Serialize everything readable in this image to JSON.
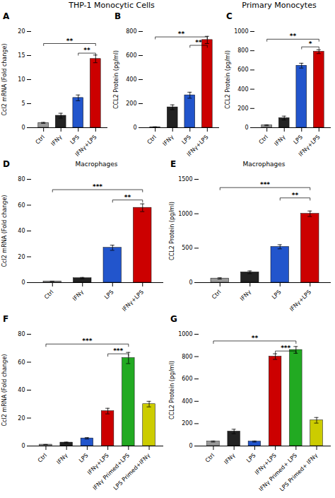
{
  "titles": [
    "THP-1 Monocytic Cells",
    "Primary Monocytes"
  ],
  "chart_data": [
    {
      "type": "bar",
      "panel_label": "A",
      "ylabel": "Ccl2 mRNA (Fold change)",
      "categories": [
        "Ctrl",
        "IFNγ",
        "LPS",
        "IFNγ+LPS"
      ],
      "values": [
        1.0,
        2.5,
        6.2,
        14.3
      ],
      "errors": [
        0.1,
        0.5,
        0.6,
        0.8
      ],
      "colors": [
        "#999999",
        "#222222",
        "#2255cc",
        "#cc0000"
      ],
      "ylim": [
        0,
        20
      ],
      "yticks": [
        0,
        5,
        10,
        15,
        20
      ],
      "annotations": [
        {
          "x1": "Ctrl",
          "x2": "IFNγ+LPS",
          "y": 17.5,
          "text": "**"
        },
        {
          "x1": "LPS",
          "x2": "IFNγ+LPS",
          "y": 15.5,
          "text": "**"
        }
      ]
    },
    {
      "type": "bar",
      "panel_label": "B",
      "ylabel": "CCL2 Protein (pg/ml)",
      "categories": [
        "Ctrl",
        "IFNγ",
        "LPS",
        "IFNγ+LPS"
      ],
      "values": [
        5.0,
        170.0,
        270.0,
        730.0
      ],
      "errors": [
        2.0,
        20.0,
        25.0,
        30.0
      ],
      "colors": [
        "#999999",
        "#222222",
        "#2255cc",
        "#cc0000"
      ],
      "ylim": [
        0,
        800
      ],
      "yticks": [
        0,
        200,
        400,
        600,
        800
      ],
      "annotations": [
        {
          "x1": "Ctrl",
          "x2": "IFNγ+LPS",
          "y": 755,
          "text": "**"
        },
        {
          "x1": "LPS",
          "x2": "IFNγ+LPS",
          "y": 685,
          "text": "**"
        }
      ]
    },
    {
      "type": "bar",
      "panel_label": "C",
      "ylabel": "CCL2 Protein (pg/ml)",
      "categories": [
        "Ctrl",
        "IFNγ",
        "LPS",
        "IFNγ+LPS"
      ],
      "values": [
        25.0,
        100.0,
        645.0,
        790.0
      ],
      "errors": [
        5.0,
        20.0,
        25.0,
        20.0
      ],
      "colors": [
        "#999999",
        "#222222",
        "#2255cc",
        "#cc0000"
      ],
      "ylim": [
        0,
        1000
      ],
      "yticks": [
        0,
        200,
        400,
        600,
        800,
        1000
      ],
      "annotations": [
        {
          "x1": "Ctrl",
          "x2": "IFNγ+LPS",
          "y": 920,
          "text": "**"
        },
        {
          "x1": "LPS",
          "x2": "IFNγ+LPS",
          "y": 840,
          "text": "*"
        }
      ]
    },
    {
      "type": "bar",
      "panel_label": "D",
      "title": "Macrophages",
      "ylabel": "Ccl2 mRNA (Fold change)",
      "categories": [
        "Ctrl",
        "IFNγ",
        "LPS",
        "IFNγ+LPS"
      ],
      "values": [
        1.0,
        3.5,
        27.0,
        58.0
      ],
      "errors": [
        0.1,
        0.5,
        2.0,
        3.0
      ],
      "colors": [
        "#999999",
        "#222222",
        "#2255cc",
        "#cc0000"
      ],
      "ylim": [
        0,
        80
      ],
      "yticks": [
        0,
        20,
        40,
        60,
        80
      ],
      "annotations": [
        {
          "x1": "Ctrl",
          "x2": "IFNγ+LPS",
          "y": 72,
          "text": "***"
        },
        {
          "x1": "LPS",
          "x2": "IFNγ+LPS",
          "y": 64,
          "text": "**"
        }
      ]
    },
    {
      "type": "bar",
      "panel_label": "E",
      "title": "Macrophages",
      "ylabel": "CCL2 Protein (pg/ml)",
      "categories": [
        "Ctrl",
        "IFNγ",
        "LPS",
        "IFNγ+LPS"
      ],
      "values": [
        60.0,
        150.0,
        520.0,
        1000.0
      ],
      "errors": [
        10.0,
        20.0,
        30.0,
        40.0
      ],
      "colors": [
        "#999999",
        "#222222",
        "#2255cc",
        "#cc0000"
      ],
      "ylim": [
        0,
        1500
      ],
      "yticks": [
        0,
        500,
        1000,
        1500
      ],
      "annotations": [
        {
          "x1": "Ctrl",
          "x2": "IFNγ+LPS",
          "y": 1380,
          "text": "***"
        },
        {
          "x1": "LPS",
          "x2": "IFNγ+LPS",
          "y": 1230,
          "text": "**"
        }
      ]
    },
    {
      "type": "bar",
      "panel_label": "F",
      "ylabel": "Ccl2 mRNA (Fold change)",
      "categories": [
        "Ctrl",
        "IFNγ",
        "LPS",
        "IFNγ+LPS",
        "IFNγ Primed+LPS",
        "LPS Primed+IFNγ"
      ],
      "values": [
        1.0,
        2.5,
        5.5,
        25.0,
        63.0,
        30.0
      ],
      "errors": [
        0.1,
        0.3,
        0.5,
        2.0,
        4.0,
        2.0
      ],
      "colors": [
        "#999999",
        "#222222",
        "#2255cc",
        "#cc0000",
        "#22aa22",
        "#cccc00"
      ],
      "ylim": [
        0,
        80
      ],
      "yticks": [
        0,
        20,
        40,
        60,
        80
      ],
      "annotations": [
        {
          "x1": "Ctrl",
          "x2": "IFNγ Primed+LPS",
          "y": 73,
          "text": "***"
        },
        {
          "x1": "IFNγ+LPS",
          "x2": "IFNγ Primed+LPS",
          "y": 66,
          "text": "***"
        }
      ]
    },
    {
      "type": "bar",
      "panel_label": "G",
      "ylabel": "CCL2 Protein (pg/ml)",
      "categories": [
        "Ctrl",
        "IFNγ",
        "LPS",
        "IFNγ+LPS",
        "IFNγ Primed+ LPS",
        "LPS Primed+ IFNγ"
      ],
      "values": [
        40.0,
        130.0,
        40.0,
        800.0,
        860.0,
        230.0
      ],
      "errors": [
        5.0,
        20.0,
        5.0,
        25.0,
        30.0,
        25.0
      ],
      "colors": [
        "#999999",
        "#222222",
        "#2255cc",
        "#cc0000",
        "#22aa22",
        "#cccc00"
      ],
      "ylim": [
        0,
        1000
      ],
      "yticks": [
        0,
        200,
        400,
        600,
        800,
        1000
      ],
      "annotations": [
        {
          "x1": "Ctrl",
          "x2": "IFNγ Primed+ LPS",
          "y": 940,
          "text": "**"
        },
        {
          "x1": "IFNγ+LPS",
          "x2": "IFNγ Primed+ LPS",
          "y": 850,
          "text": "***"
        }
      ]
    }
  ]
}
